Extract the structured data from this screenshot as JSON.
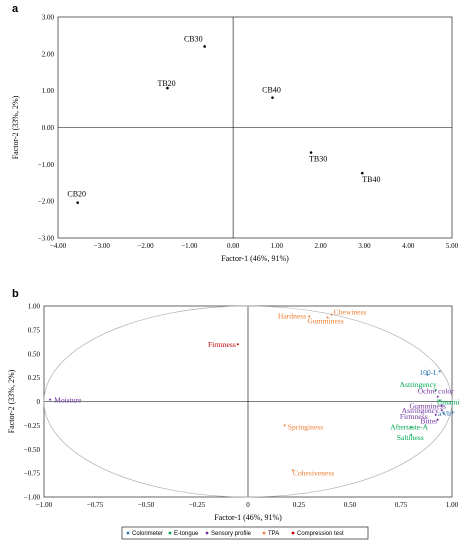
{
  "chart_data": [
    {
      "panel": "a",
      "type": "scatter",
      "xlabel": "Factor-1 (46%, 91%)",
      "ylabel": "Factor-2 (33%, 2%)",
      "xlim": [
        -4,
        5
      ],
      "ylim": [
        -3,
        3
      ],
      "xticks": [
        "−4.00",
        "−3.00",
        "−2.00",
        "−1.00",
        "0.00",
        "1.00",
        "2.00",
        "3.00",
        "4.00",
        "5.00"
      ],
      "yticks": [
        "3.00",
        "2.00",
        "1.00",
        "0.00",
        "−1.00",
        "−2.00",
        "−3.00"
      ],
      "points": [
        {
          "label": "CB30",
          "x": -0.65,
          "y": 2.2
        },
        {
          "label": "TB20",
          "x": -1.5,
          "y": 1.07
        },
        {
          "label": "CB40",
          "x": 0.9,
          "y": 0.81
        },
        {
          "label": "TB30",
          "x": 1.78,
          "y": -0.68
        },
        {
          "label": "TB40",
          "x": 2.95,
          "y": -1.24
        },
        {
          "label": "CB20",
          "x": -3.55,
          "y": -2.04
        }
      ]
    },
    {
      "panel": "b",
      "type": "scatter",
      "xlabel": "Factor-1 (46%, 91%)",
      "ylabel": "Factor-2 (33%, 2%)",
      "xlim": [
        -1,
        1
      ],
      "ylim": [
        -1,
        1
      ],
      "xticks": [
        "−1.00",
        "−0.75",
        "−0.50",
        "−0.25",
        "0",
        "0.25",
        "0.50",
        "0.75",
        "1.00"
      ],
      "yticks": [
        "1.00",
        "0.75",
        "0.50",
        "0.25",
        "0",
        "−0.25",
        "−0.50",
        "−0.75",
        "−1.00"
      ],
      "legend": {
        "placement": "bottom",
        "entries": [
          {
            "name": "Colorimeter",
            "color": "#2e75b6"
          },
          {
            "name": "E-tongue",
            "color": "#00a651"
          },
          {
            "name": "Sensory profile",
            "color": "#7030a0"
          },
          {
            "name": "TPA",
            "color": "#ed7d31"
          },
          {
            "name": "Compression test",
            "color": "#c00000"
          }
        ]
      },
      "points": [
        {
          "label": "Hardness",
          "x": 0.3,
          "y": 0.89,
          "group": "TPA"
        },
        {
          "label": "Chewiness",
          "x": 0.41,
          "y": 0.91,
          "group": "TPA"
        },
        {
          "label": "Gumminess",
          "x": 0.39,
          "y": 0.88,
          "group": "TPA"
        },
        {
          "label": "Firmness",
          "x": -0.05,
          "y": 0.6,
          "group": "Compression test"
        },
        {
          "label": "100-L*",
          "x": 0.88,
          "y": 0.28,
          "group": "Colorimeter"
        },
        {
          "label": "Moisture",
          "x": -0.97,
          "y": 0.02,
          "group": "Sensory profile"
        },
        {
          "label": "Astringency",
          "x": 0.92,
          "y": 0.12,
          "group": "E-tongue"
        },
        {
          "label": "Ochre color",
          "x": 0.93,
          "y": 0.05,
          "group": "Sensory profile"
        },
        {
          "label": "Umami",
          "x": 0.94,
          "y": 0.01,
          "group": "E-tongue"
        },
        {
          "label": "Gumminess",
          "x": 0.95,
          "y": -0.04,
          "group": "Sensory profile"
        },
        {
          "label": "Astringency",
          "x": 0.95,
          "y": -0.09,
          "group": "Sensory profile"
        },
        {
          "label": "Firmness",
          "x": 0.92,
          "y": -0.14,
          "group": "Sensory profile"
        },
        {
          "label": "a*/b*",
          "x": 0.96,
          "y": -0.13,
          "group": "Colorimeter"
        },
        {
          "label": "Bitter",
          "x": 0.93,
          "y": -0.19,
          "group": "Sensory profile"
        },
        {
          "label": "Aftertaste-A",
          "x": 0.8,
          "y": -0.27,
          "group": "E-tongue"
        },
        {
          "label": "Saltiness",
          "x": 0.8,
          "y": -0.35,
          "group": "E-tongue"
        },
        {
          "label": "Springiness",
          "x": 0.18,
          "y": -0.25,
          "group": "TPA"
        },
        {
          "label": "Cohesiveness",
          "x": 0.22,
          "y": -0.72,
          "group": "TPA"
        }
      ]
    }
  ]
}
